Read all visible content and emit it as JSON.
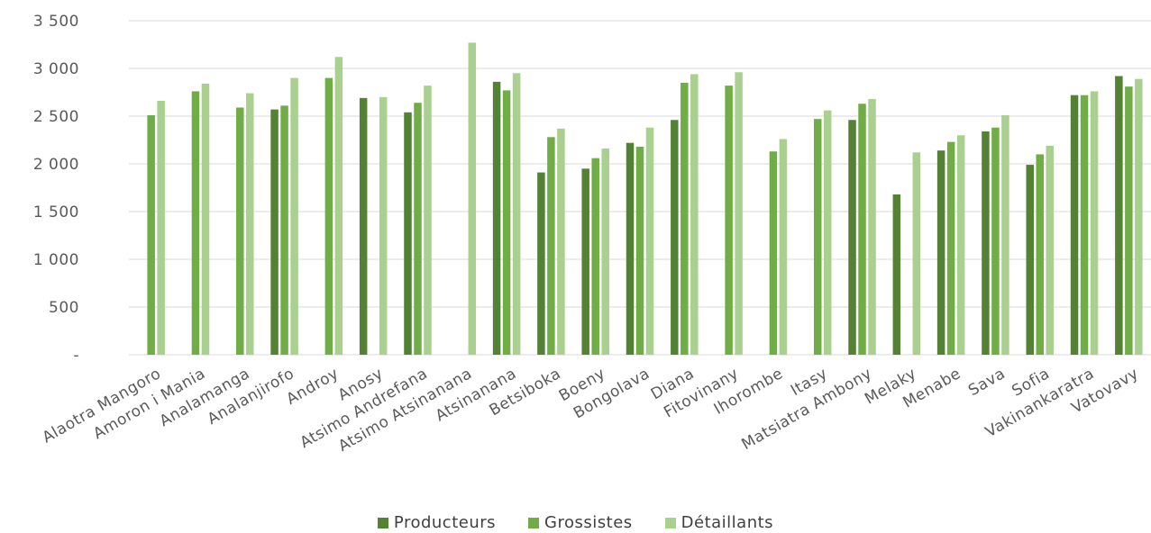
{
  "chart_data": {
    "type": "bar",
    "title": "",
    "xlabel": "",
    "ylabel": "",
    "ylim": [
      0,
      3500
    ],
    "yticks": [
      {
        "value": 0,
        "label": "-"
      },
      {
        "value": 500,
        "label": "500"
      },
      {
        "value": 1000,
        "label": "1 000"
      },
      {
        "value": 1500,
        "label": "1 500"
      },
      {
        "value": 2000,
        "label": "2 000"
      },
      {
        "value": 2500,
        "label": "2 500"
      },
      {
        "value": 3000,
        "label": "3 000"
      },
      {
        "value": 3500,
        "label": "3 500"
      }
    ],
    "grid": true,
    "legend_position": "bottom",
    "categories": [
      "Alaotra Mangoro",
      "Amoron i Mania",
      "Analamanga",
      "Analanjirofo",
      "Androy",
      "Anosy",
      "Atsimo Andrefana",
      "Atsimo Atsinanana",
      "Atsinanana",
      "Betsiboka",
      "Boeny",
      "Bongolava",
      "Diana",
      "Fitovinany",
      "Ihorombe",
      "Itasy",
      "Matsiatra Ambony",
      "Melaky",
      "Menabe",
      "Sava",
      "Sofia",
      "Vakinankaratra",
      "Vatovavy"
    ],
    "series": [
      {
        "name": "Producteurs",
        "color": "#548235",
        "values": [
          null,
          null,
          null,
          2570,
          null,
          2690,
          2540,
          null,
          2860,
          1910,
          1950,
          2220,
          2460,
          null,
          null,
          null,
          2460,
          1680,
          2140,
          2340,
          1990,
          2720,
          2920
        ]
      },
      {
        "name": "Grossistes",
        "color": "#70AD47",
        "values": [
          2510,
          2760,
          2590,
          2610,
          2900,
          null,
          2640,
          null,
          2770,
          2280,
          2060,
          2180,
          2850,
          2820,
          2130,
          2470,
          2630,
          null,
          2230,
          2380,
          2100,
          2720,
          2810
        ]
      },
      {
        "name": "Détaillants",
        "color": "#A9D08E",
        "values": [
          2660,
          2840,
          2740,
          2900,
          3120,
          2700,
          2820,
          3270,
          2950,
          2370,
          2160,
          2380,
          2940,
          2960,
          2260,
          2560,
          2680,
          2120,
          2300,
          2510,
          2190,
          2760,
          2890
        ]
      }
    ]
  }
}
